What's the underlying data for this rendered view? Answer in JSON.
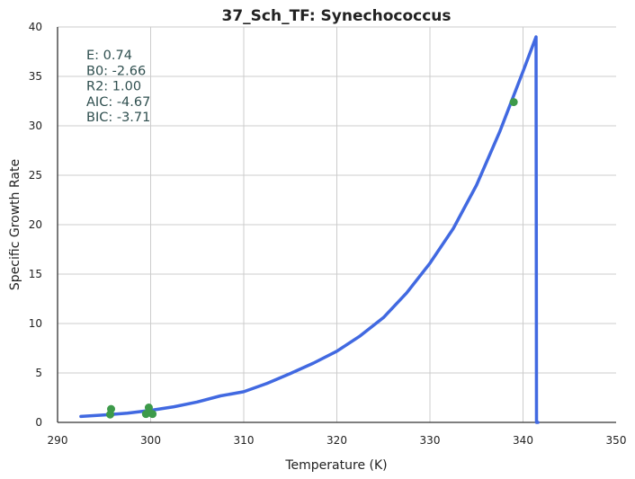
{
  "chart_data": {
    "type": "scatter",
    "title": "37_Sch_TF: Synechococcus",
    "xlabel": "Temperature (K)",
    "ylabel": "Specific Growth Rate",
    "xlim": [
      290,
      350
    ],
    "ylim": [
      0,
      40
    ],
    "xticks": [
      290,
      300,
      310,
      320,
      330,
      340,
      350
    ],
    "yticks": [
      0,
      5,
      10,
      15,
      20,
      25,
      30,
      35,
      40
    ],
    "grid": true,
    "stats": [
      "E:  0.74",
      "B0:  -2.66",
      "R2:  1.00",
      "AIC: -4.67",
      "BIC: -3.71"
    ],
    "series": [
      {
        "kind": "points",
        "color": "#3d9a4a",
        "x": [
          295.65,
          295.75,
          299.5,
          299.8,
          300.2,
          339.0
        ],
        "y": [
          0.8,
          1.35,
          0.85,
          1.5,
          0.85,
          32.4
        ]
      },
      {
        "kind": "fit-curve",
        "color": "#4169e1",
        "x": [
          292.5,
          295,
          297.5,
          300,
          302.5,
          305,
          307.5,
          310,
          312.5,
          315,
          317.5,
          320,
          322.5,
          325,
          327.5,
          330,
          332.5,
          335,
          337.5,
          340,
          341.4,
          341.45,
          341.6
        ],
        "y": [
          0.6,
          0.75,
          0.94,
          1.22,
          1.58,
          2.06,
          2.68,
          3.1,
          3.95,
          4.95,
          6.0,
          7.2,
          8.75,
          10.6,
          13.1,
          16.1,
          19.6,
          24.0,
          29.4,
          35.5,
          39.0,
          0.0,
          0.0
        ]
      }
    ]
  }
}
